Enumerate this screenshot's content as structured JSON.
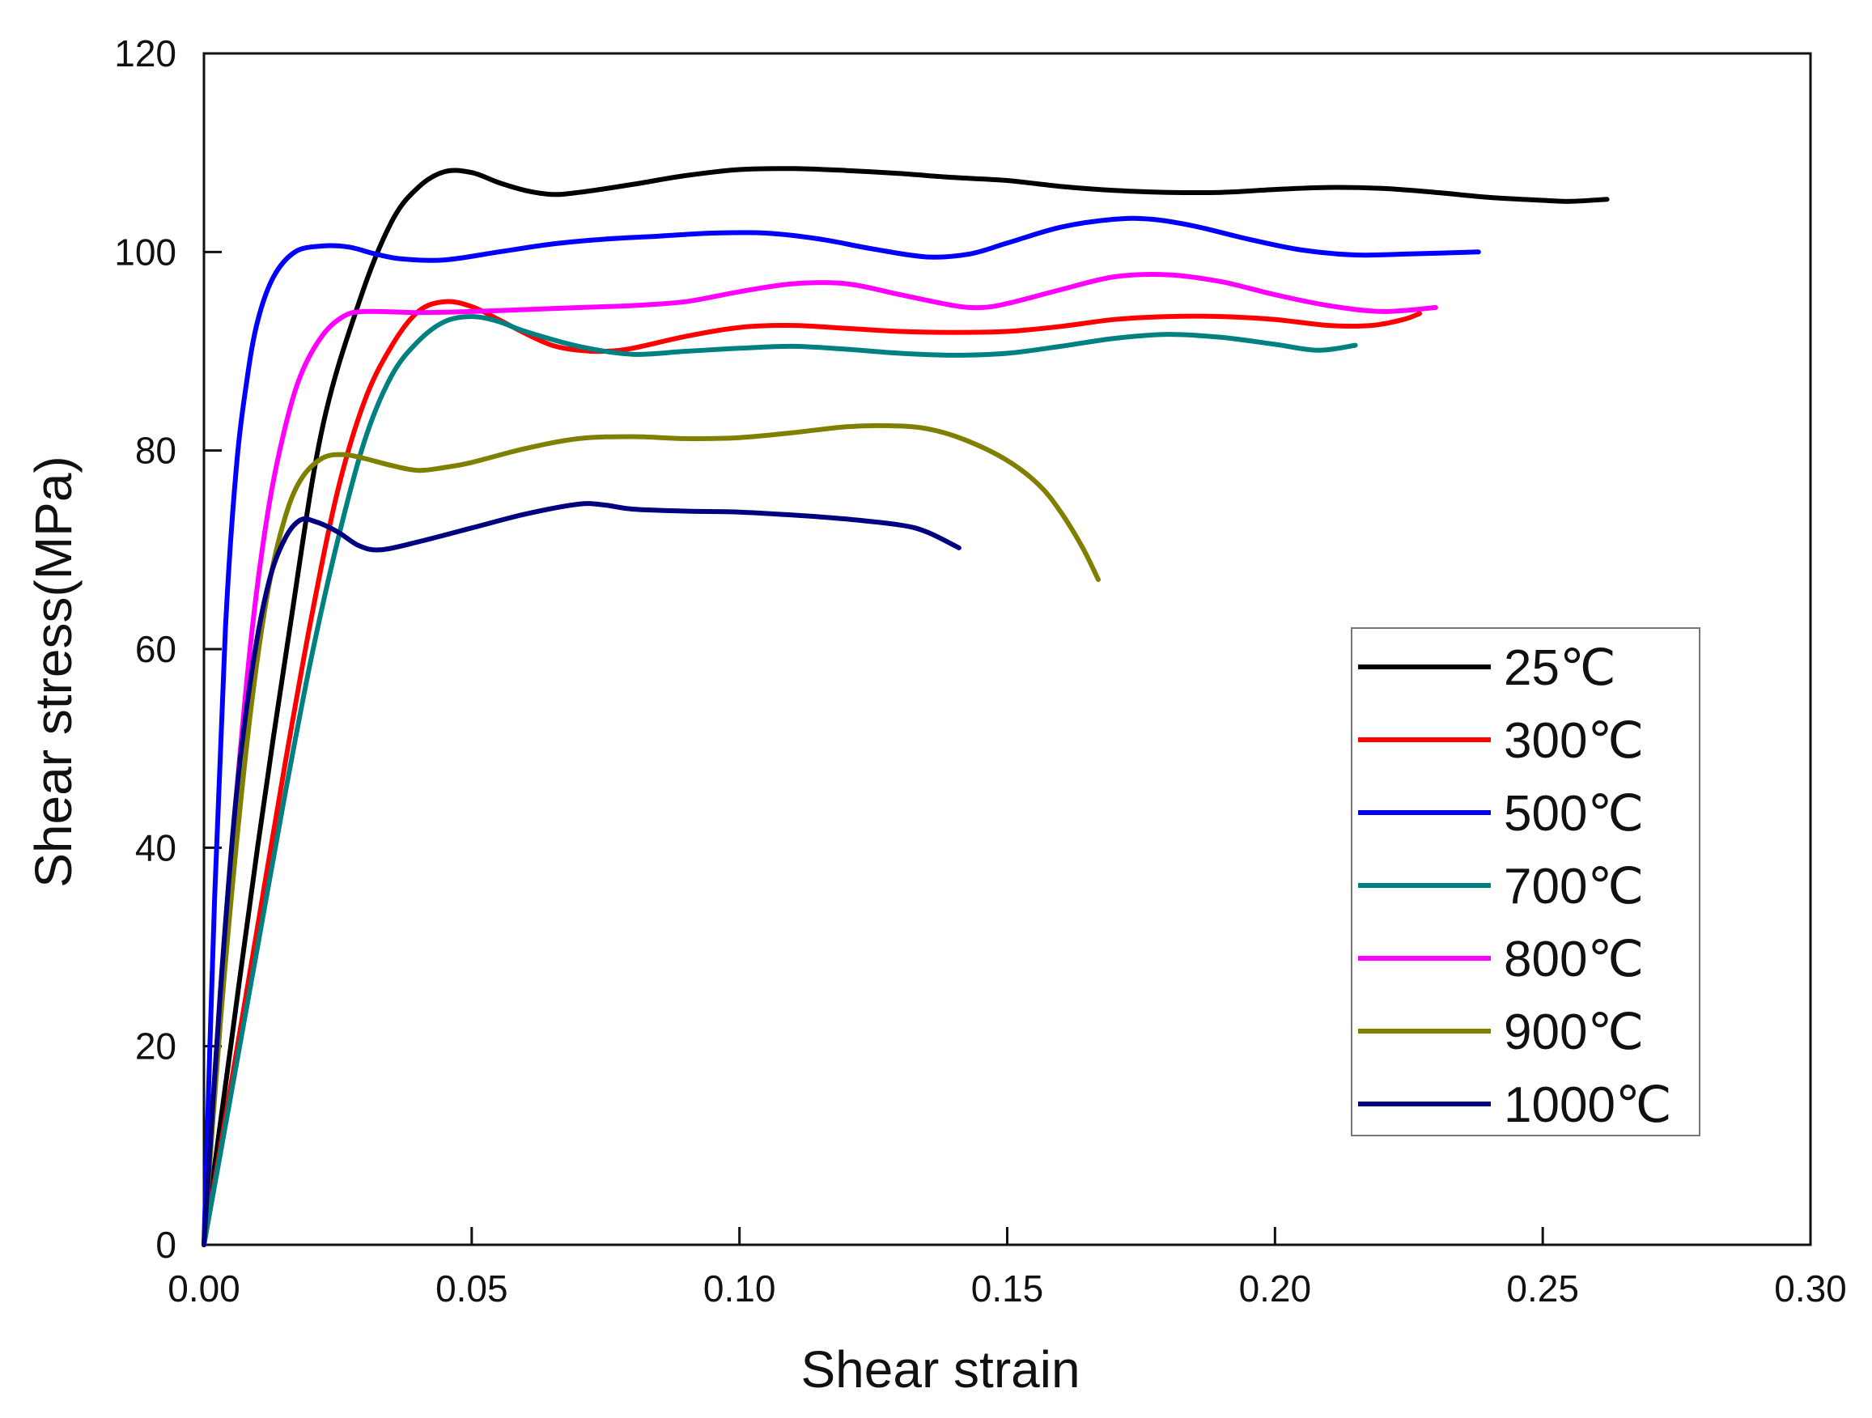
{
  "chart_data": {
    "type": "line",
    "title": "",
    "xlabel": "Shear strain",
    "ylabel": "Shear stress(MPa)",
    "xlim": [
      0,
      0.3
    ],
    "ylim": [
      0,
      120
    ],
    "xticks": [
      "0.00",
      "0.05",
      "0.10",
      "0.15",
      "0.20",
      "0.25",
      "0.30"
    ],
    "yticks": [
      "0",
      "20",
      "40",
      "60",
      "80",
      "100",
      "120"
    ],
    "grid": false,
    "legend_position": "lower-right",
    "series": [
      {
        "name": "25℃",
        "color": "#000000",
        "points": [
          [
            0,
            0
          ],
          [
            0.005,
            20
          ],
          [
            0.01,
            40
          ],
          [
            0.016,
            62
          ],
          [
            0.022,
            82
          ],
          [
            0.029,
            95
          ],
          [
            0.035,
            103
          ],
          [
            0.04,
            106.5
          ],
          [
            0.045,
            108.1
          ],
          [
            0.05,
            108.0
          ],
          [
            0.055,
            107
          ],
          [
            0.06,
            106.2
          ],
          [
            0.065,
            105.8
          ],
          [
            0.07,
            106
          ],
          [
            0.08,
            106.8
          ],
          [
            0.09,
            107.7
          ],
          [
            0.1,
            108.3
          ],
          [
            0.11,
            108.4
          ],
          [
            0.12,
            108.2
          ],
          [
            0.13,
            107.9
          ],
          [
            0.14,
            107.5
          ],
          [
            0.15,
            107.2
          ],
          [
            0.16,
            106.6
          ],
          [
            0.17,
            106.2
          ],
          [
            0.18,
            106
          ],
          [
            0.19,
            106
          ],
          [
            0.2,
            106.3
          ],
          [
            0.21,
            106.5
          ],
          [
            0.22,
            106.4
          ],
          [
            0.23,
            106
          ],
          [
            0.24,
            105.5
          ],
          [
            0.25,
            105.2
          ],
          [
            0.255,
            105.1
          ],
          [
            0.262,
            105.3
          ]
        ]
      },
      {
        "name": "300℃",
        "color": "#ff0000",
        "points": [
          [
            0,
            0
          ],
          [
            0.005,
            16
          ],
          [
            0.01,
            32
          ],
          [
            0.015,
            48
          ],
          [
            0.02,
            63
          ],
          [
            0.025,
            76
          ],
          [
            0.03,
            85
          ],
          [
            0.035,
            90.5
          ],
          [
            0.04,
            94
          ],
          [
            0.045,
            95
          ],
          [
            0.05,
            94.5
          ],
          [
            0.055,
            93.2
          ],
          [
            0.06,
            91.8
          ],
          [
            0.065,
            90.6
          ],
          [
            0.07,
            90.1
          ],
          [
            0.075,
            90
          ],
          [
            0.08,
            90.3
          ],
          [
            0.09,
            91.5
          ],
          [
            0.1,
            92.4
          ],
          [
            0.11,
            92.6
          ],
          [
            0.12,
            92.3
          ],
          [
            0.13,
            92
          ],
          [
            0.14,
            91.9
          ],
          [
            0.15,
            92
          ],
          [
            0.16,
            92.5
          ],
          [
            0.17,
            93.2
          ],
          [
            0.18,
            93.5
          ],
          [
            0.19,
            93.5
          ],
          [
            0.2,
            93.2
          ],
          [
            0.21,
            92.6
          ],
          [
            0.218,
            92.6
          ],
          [
            0.224,
            93.2
          ],
          [
            0.227,
            93.8
          ]
        ]
      },
      {
        "name": "500℃",
        "color": "#0000ff",
        "points": [
          [
            0,
            0
          ],
          [
            0.002,
            35
          ],
          [
            0.004,
            62
          ],
          [
            0.006,
            78
          ],
          [
            0.008,
            87
          ],
          [
            0.01,
            93
          ],
          [
            0.013,
            97.5
          ],
          [
            0.017,
            100
          ],
          [
            0.022,
            100.6
          ],
          [
            0.027,
            100.5
          ],
          [
            0.032,
            99.8
          ],
          [
            0.037,
            99.3
          ],
          [
            0.045,
            99.2
          ],
          [
            0.055,
            100
          ],
          [
            0.065,
            100.8
          ],
          [
            0.075,
            101.3
          ],
          [
            0.085,
            101.6
          ],
          [
            0.095,
            101.9
          ],
          [
            0.105,
            101.9
          ],
          [
            0.115,
            101.3
          ],
          [
            0.125,
            100.3
          ],
          [
            0.135,
            99.5
          ],
          [
            0.143,
            99.8
          ],
          [
            0.15,
            100.9
          ],
          [
            0.16,
            102.5
          ],
          [
            0.17,
            103.3
          ],
          [
            0.177,
            103.3
          ],
          [
            0.185,
            102.6
          ],
          [
            0.195,
            101.3
          ],
          [
            0.205,
            100.2
          ],
          [
            0.215,
            99.7
          ],
          [
            0.225,
            99.8
          ],
          [
            0.238,
            100
          ]
        ]
      },
      {
        "name": "700℃",
        "color": "#008080",
        "points": [
          [
            0,
            0
          ],
          [
            0.005,
            15
          ],
          [
            0.01,
            30
          ],
          [
            0.015,
            45
          ],
          [
            0.02,
            59
          ],
          [
            0.025,
            71
          ],
          [
            0.03,
            81
          ],
          [
            0.035,
            87.5
          ],
          [
            0.04,
            91
          ],
          [
            0.045,
            93
          ],
          [
            0.05,
            93.5
          ],
          [
            0.055,
            93
          ],
          [
            0.06,
            92
          ],
          [
            0.07,
            90.5
          ],
          [
            0.08,
            89.7
          ],
          [
            0.09,
            90
          ],
          [
            0.1,
            90.3
          ],
          [
            0.11,
            90.5
          ],
          [
            0.12,
            90.2
          ],
          [
            0.13,
            89.8
          ],
          [
            0.14,
            89.6
          ],
          [
            0.15,
            89.8
          ],
          [
            0.16,
            90.5
          ],
          [
            0.17,
            91.3
          ],
          [
            0.18,
            91.7
          ],
          [
            0.19,
            91.4
          ],
          [
            0.2,
            90.7
          ],
          [
            0.208,
            90.1
          ],
          [
            0.215,
            90.6
          ]
        ]
      },
      {
        "name": "800℃",
        "color": "#ff00ff",
        "points": [
          [
            0,
            0
          ],
          [
            0.003,
            25
          ],
          [
            0.006,
            45
          ],
          [
            0.009,
            62
          ],
          [
            0.012,
            74
          ],
          [
            0.015,
            82
          ],
          [
            0.018,
            87.5
          ],
          [
            0.022,
            91.5
          ],
          [
            0.026,
            93.5
          ],
          [
            0.03,
            94
          ],
          [
            0.04,
            93.9
          ],
          [
            0.05,
            94
          ],
          [
            0.06,
            94.2
          ],
          [
            0.07,
            94.4
          ],
          [
            0.08,
            94.6
          ],
          [
            0.09,
            95
          ],
          [
            0.1,
            96
          ],
          [
            0.11,
            96.8
          ],
          [
            0.12,
            96.8
          ],
          [
            0.13,
            95.7
          ],
          [
            0.14,
            94.6
          ],
          [
            0.145,
            94.4
          ],
          [
            0.15,
            94.8
          ],
          [
            0.16,
            96.2
          ],
          [
            0.17,
            97.5
          ],
          [
            0.18,
            97.7
          ],
          [
            0.19,
            97
          ],
          [
            0.2,
            95.7
          ],
          [
            0.21,
            94.6
          ],
          [
            0.22,
            94
          ],
          [
            0.23,
            94.4
          ]
        ]
      },
      {
        "name": "900℃",
        "color": "#808000",
        "points": [
          [
            0,
            0
          ],
          [
            0.003,
            22
          ],
          [
            0.006,
            40
          ],
          [
            0.009,
            55
          ],
          [
            0.012,
            66
          ],
          [
            0.015,
            73
          ],
          [
            0.018,
            77
          ],
          [
            0.022,
            79.2
          ],
          [
            0.026,
            79.6
          ],
          [
            0.03,
            79.2
          ],
          [
            0.035,
            78.5
          ],
          [
            0.04,
            78
          ],
          [
            0.045,
            78.3
          ],
          [
            0.05,
            78.8
          ],
          [
            0.06,
            80.2
          ],
          [
            0.07,
            81.2
          ],
          [
            0.08,
            81.4
          ],
          [
            0.09,
            81.2
          ],
          [
            0.1,
            81.3
          ],
          [
            0.11,
            81.8
          ],
          [
            0.12,
            82.4
          ],
          [
            0.128,
            82.5
          ],
          [
            0.135,
            82.2
          ],
          [
            0.142,
            81.1
          ],
          [
            0.15,
            79
          ],
          [
            0.156,
            76.5
          ],
          [
            0.16,
            73.8
          ],
          [
            0.164,
            70.3
          ],
          [
            0.167,
            67
          ]
        ]
      },
      {
        "name": "1000℃",
        "color": "#000080",
        "points": [
          [
            0,
            0
          ],
          [
            0.003,
            25
          ],
          [
            0.006,
            45
          ],
          [
            0.009,
            58
          ],
          [
            0.012,
            66.5
          ],
          [
            0.015,
            71
          ],
          [
            0.018,
            73
          ],
          [
            0.021,
            72.8
          ],
          [
            0.025,
            71.8
          ],
          [
            0.029,
            70.4
          ],
          [
            0.033,
            70
          ],
          [
            0.04,
            70.8
          ],
          [
            0.05,
            72.2
          ],
          [
            0.06,
            73.6
          ],
          [
            0.07,
            74.6
          ],
          [
            0.075,
            74.5
          ],
          [
            0.08,
            74.1
          ],
          [
            0.09,
            73.9
          ],
          [
            0.1,
            73.8
          ],
          [
            0.11,
            73.5
          ],
          [
            0.12,
            73.1
          ],
          [
            0.13,
            72.5
          ],
          [
            0.135,
            71.8
          ],
          [
            0.141,
            70.2
          ]
        ]
      }
    ]
  }
}
